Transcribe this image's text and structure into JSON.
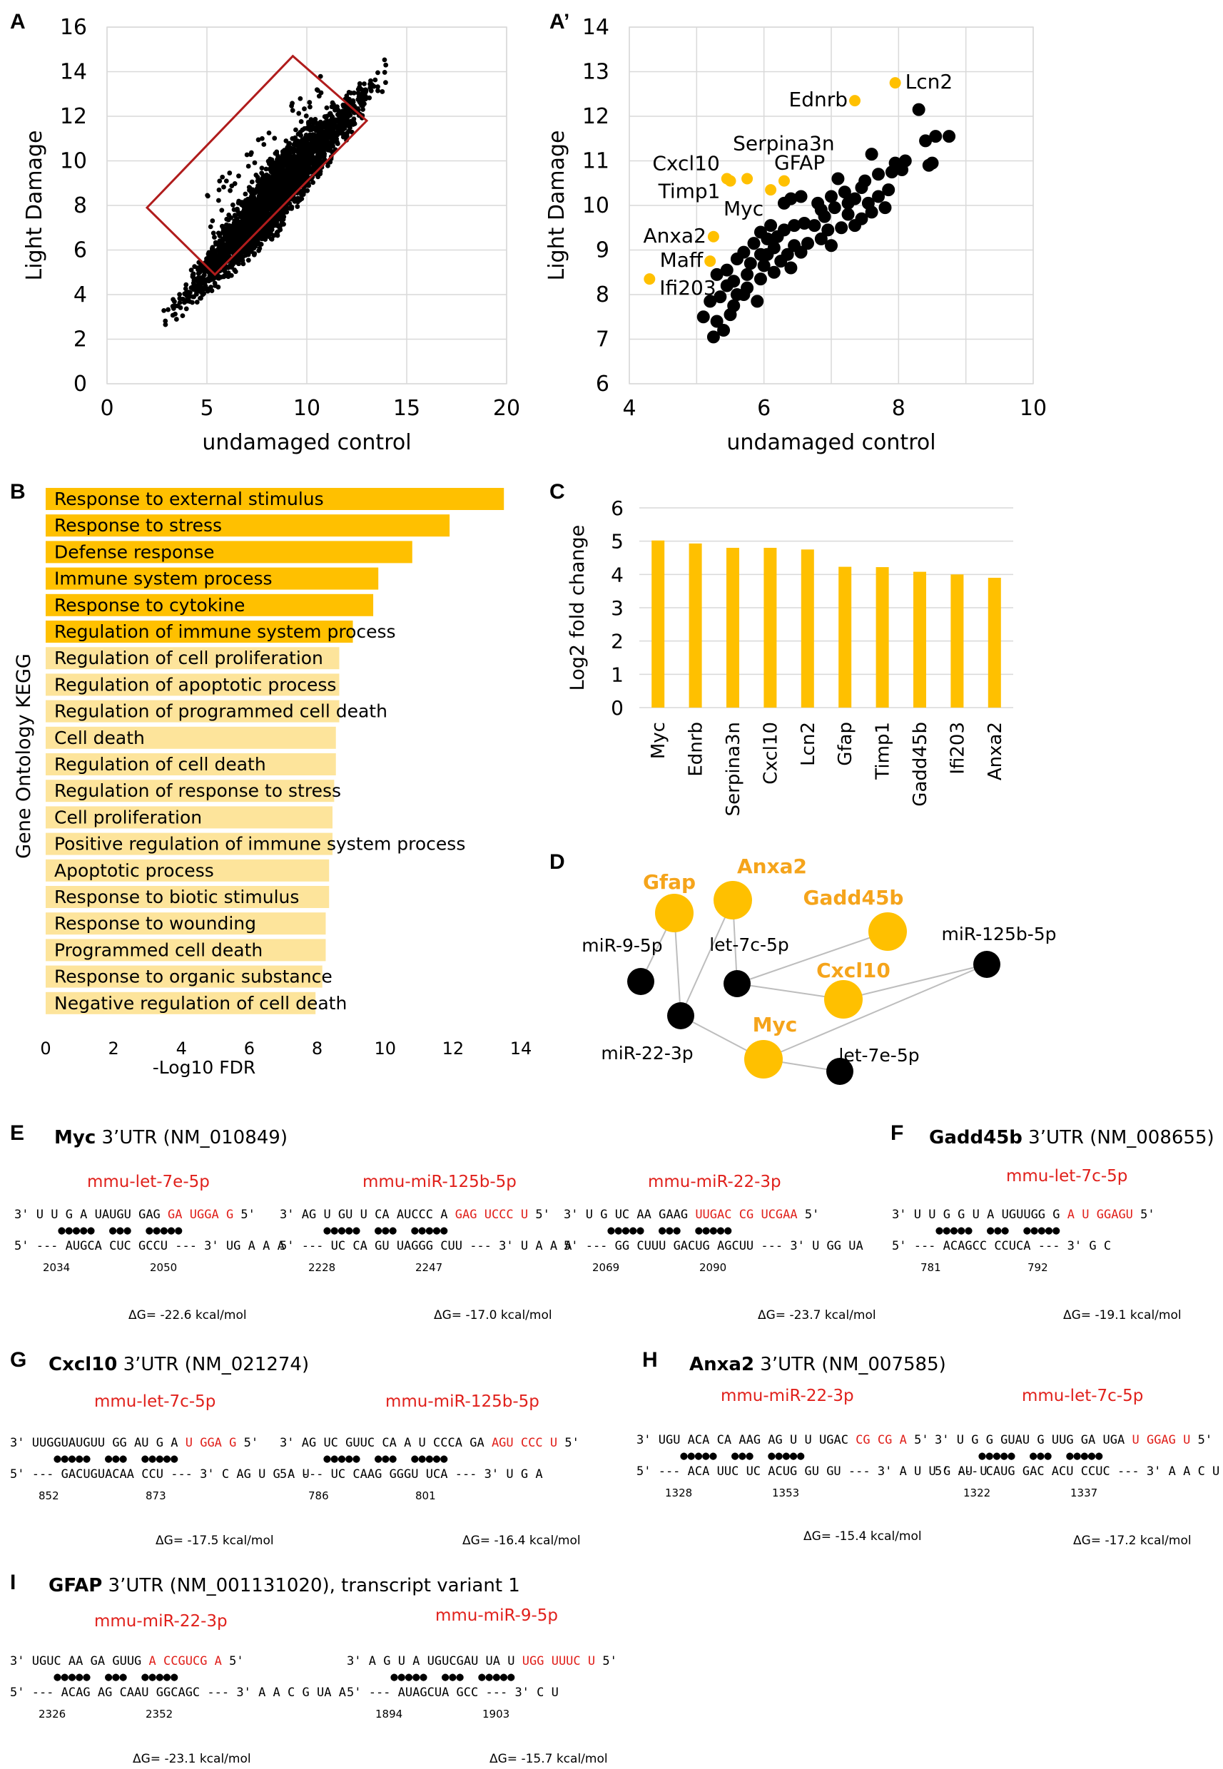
{
  "panels": {
    "A": {
      "label": "A",
      "xlabel": "undamaged control",
      "ylabel": "Light Damage",
      "xticks": [
        "0",
        "5",
        "10",
        "15",
        "20"
      ],
      "yticks": [
        "0",
        "2",
        "4",
        "6",
        "8",
        "10",
        "12",
        "14",
        "16"
      ]
    },
    "A2": {
      "label": "A’",
      "xlabel": "undamaged control",
      "ylabel": "Light Damage",
      "xticks": [
        "4",
        "6",
        "8",
        "10"
      ],
      "yticks": [
        "6",
        "7",
        "8",
        "9",
        "10",
        "11",
        "12",
        "13",
        "14"
      ]
    },
    "B": {
      "label": "B",
      "xlabel": "-Log10 FDR",
      "ylabel": "Gene Ontology KEGG",
      "xticks": [
        "0",
        "2",
        "4",
        "6",
        "8",
        "10",
        "12",
        "14"
      ]
    },
    "C": {
      "label": "C",
      "ylabel": "Log2 fold change",
      "yticks": [
        "0",
        "1",
        "2",
        "3",
        "4",
        "5",
        "6"
      ]
    },
    "D": {
      "label": "D"
    },
    "E": {
      "label": "E",
      "gene": "Myc",
      "title": " 3’UTR (NM_010849)"
    },
    "F": {
      "label": "F",
      "gene": "Gadd45b",
      "title": " 3’UTR (NM_008655)"
    },
    "G": {
      "label": "G",
      "gene": "Cxcl10",
      "title": " 3’UTR (NM_021274)"
    },
    "H": {
      "label": "H",
      "gene": "Anxa2",
      "title": " 3’UTR (NM_007585)"
    },
    "I": {
      "label": "I",
      "gene": "GFAP",
      "title": " 3’UTR (NM_001131020), transcript variant 1"
    }
  },
  "chart_data": [
    {
      "panel": "A",
      "type": "scatter",
      "xlabel": "undamaged control",
      "ylabel": "Light Damage",
      "xlim": [
        0,
        20
      ],
      "ylim": [
        0,
        16
      ],
      "grid": true,
      "description_points": "dense cloud along y = x from ~2.3 to ~14.3",
      "highlight_box": {
        "corners": [
          [
            2,
            7.9
          ],
          [
            9.3,
            14.7
          ],
          [
            13,
            11.8
          ],
          [
            5.4,
            4.9
          ]
        ],
        "color": "#b01c1c"
      }
    },
    {
      "panel": "A’",
      "type": "scatter",
      "xlabel": "undamaged control",
      "ylabel": "Light Damage",
      "xlim": [
        4,
        10
      ],
      "ylim": [
        6,
        14
      ],
      "grid": true,
      "labeled_points": [
        {
          "name": "Lcn2",
          "x": 7.95,
          "y": 12.75
        },
        {
          "name": "Ednrb",
          "x": 7.35,
          "y": 12.35
        },
        {
          "name": "Serpina3n",
          "x": 5.75,
          "y": 10.6
        },
        {
          "name": "Cxcl10",
          "x": 5.45,
          "y": 10.6
        },
        {
          "name": "GFAP",
          "x": 6.3,
          "y": 10.55
        },
        {
          "name": "Timp1",
          "x": 5.5,
          "y": 10.55
        },
        {
          "name": "Myc",
          "x": 6.1,
          "y": 10.35
        },
        {
          "name": "Anxa2",
          "x": 5.25,
          "y": 9.3
        },
        {
          "name": "Maff",
          "x": 5.2,
          "y": 8.75
        },
        {
          "name": "Ifi203",
          "x": 4.3,
          "y": 8.35
        }
      ],
      "points": [
        [
          8.3,
          12.15
        ],
        [
          8.55,
          11.55
        ],
        [
          8.75,
          11.55
        ],
        [
          8.4,
          11.45
        ],
        [
          8.1,
          11.0
        ],
        [
          8.5,
          10.95
        ],
        [
          8.45,
          10.9
        ],
        [
          7.6,
          11.15
        ],
        [
          7.95,
          10.95
        ],
        [
          7.9,
          10.75
        ],
        [
          8.05,
          10.8
        ],
        [
          7.7,
          10.7
        ],
        [
          7.45,
          10.4
        ],
        [
          7.35,
          10.15
        ],
        [
          7.55,
          10.05
        ],
        [
          7.7,
          10.2
        ],
        [
          7.8,
          9.95
        ],
        [
          7.2,
          10.3
        ],
        [
          7.0,
          10.2
        ],
        [
          6.8,
          10.05
        ],
        [
          6.55,
          10.2
        ],
        [
          6.4,
          10.15
        ],
        [
          6.3,
          10.05
        ],
        [
          7.05,
          9.95
        ],
        [
          7.25,
          9.8
        ],
        [
          7.45,
          9.7
        ],
        [
          7.6,
          9.85
        ],
        [
          6.9,
          9.75
        ],
        [
          6.75,
          9.55
        ],
        [
          6.95,
          9.45
        ],
        [
          7.15,
          9.5
        ],
        [
          7.35,
          9.55
        ],
        [
          6.6,
          9.6
        ],
        [
          6.45,
          9.55
        ],
        [
          6.3,
          9.45
        ],
        [
          6.1,
          9.55
        ],
        [
          5.95,
          9.4
        ],
        [
          6.05,
          9.25
        ],
        [
          6.2,
          9.3
        ],
        [
          6.45,
          9.1
        ],
        [
          6.65,
          9.15
        ],
        [
          6.85,
          9.25
        ],
        [
          7.0,
          9.1
        ],
        [
          6.15,
          9.05
        ],
        [
          5.85,
          9.15
        ],
        [
          5.7,
          8.95
        ],
        [
          5.95,
          8.9
        ],
        [
          6.35,
          8.9
        ],
        [
          6.55,
          8.95
        ],
        [
          6.25,
          8.75
        ],
        [
          6.0,
          8.65
        ],
        [
          5.8,
          8.7
        ],
        [
          5.6,
          8.8
        ],
        [
          5.45,
          8.55
        ],
        [
          5.75,
          8.45
        ],
        [
          6.15,
          8.5
        ],
        [
          6.4,
          8.6
        ],
        [
          5.95,
          8.35
        ],
        [
          5.55,
          8.3
        ],
        [
          5.3,
          8.45
        ],
        [
          5.45,
          8.2
        ],
        [
          5.75,
          8.15
        ],
        [
          5.6,
          8.0
        ],
        [
          5.35,
          7.95
        ],
        [
          5.2,
          7.85
        ],
        [
          5.55,
          7.75
        ],
        [
          5.9,
          7.85
        ],
        [
          5.5,
          7.55
        ],
        [
          5.1,
          7.5
        ],
        [
          5.3,
          7.4
        ],
        [
          5.4,
          7.2
        ],
        [
          5.25,
          7.05
        ],
        [
          5.7,
          8.0
        ],
        [
          6.05,
          8.9
        ],
        [
          6.85,
          9.9
        ],
        [
          7.1,
          10.6
        ],
        [
          7.25,
          10.05
        ],
        [
          7.5,
          10.55
        ],
        [
          7.85,
          10.35
        ],
        [
          8.0,
          10.85
        ]
      ]
    },
    {
      "panel": "B",
      "type": "bar",
      "orientation": "horizontal",
      "xlabel": "-Log10 FDR",
      "ylabel": "Gene Ontology KEGG",
      "xlim": [
        0,
        14
      ],
      "categories": [
        "Response to external stimulus",
        "Response to stress",
        "Defense response",
        "Immune system process",
        "Response to cytokine",
        "Regulation of immune system process",
        "Regulation of cell proliferation",
        "Regulation of apoptotic process",
        "Regulation of programmed cell death",
        "Cell death",
        "Regulation of cell death",
        "Regulation of response to stress",
        "Cell proliferation",
        "Positive regulation of immune system process",
        "Apoptotic process",
        "Response to biotic stimulus",
        "Response to wounding",
        "Programmed cell death",
        "Response to organic substance",
        "Negative regulation of cell death"
      ],
      "values": [
        13.5,
        11.9,
        10.8,
        9.8,
        9.65,
        9.05,
        8.65,
        8.65,
        8.65,
        8.55,
        8.55,
        8.5,
        8.45,
        8.45,
        8.35,
        8.35,
        8.25,
        8.25,
        8.15,
        7.95
      ],
      "colors": {
        "dark": "#ffc000",
        "light": "#fde49b"
      },
      "dark_count": 6
    },
    {
      "panel": "C",
      "type": "bar",
      "ylabel": "Log2 fold change",
      "ylim": [
        0,
        6
      ],
      "categories": [
        "Myc",
        "Ednrb",
        "Serpina3n",
        "Cxcl10",
        "Lcn2",
        "Gfap",
        "Timp1",
        "Gadd45b",
        "Ifi203",
        "Anxa2"
      ],
      "values": [
        5.02,
        4.93,
        4.8,
        4.8,
        4.75,
        4.23,
        4.22,
        4.08,
        4.0,
        3.9
      ],
      "color": "#ffc000",
      "grid": true
    },
    {
      "panel": "D",
      "type": "network",
      "nodes": [
        {
          "id": "Gfap",
          "kind": "gene"
        },
        {
          "id": "Anxa2",
          "kind": "gene"
        },
        {
          "id": "Gadd45b",
          "kind": "gene"
        },
        {
          "id": "Cxcl10",
          "kind": "gene"
        },
        {
          "id": "Myc",
          "kind": "gene"
        },
        {
          "id": "miR-9-5p",
          "kind": "mirna"
        },
        {
          "id": "let-7c-5p",
          "kind": "mirna"
        },
        {
          "id": "miR-125b-5p",
          "kind": "mirna"
        },
        {
          "id": "miR-22-3p",
          "kind": "mirna"
        },
        {
          "id": "let-7e-5p",
          "kind": "mirna"
        }
      ],
      "edges": [
        [
          "Gfap",
          "miR-9-5p"
        ],
        [
          "Gfap",
          "miR-22-3p"
        ],
        [
          "Anxa2",
          "miR-22-3p"
        ],
        [
          "Anxa2",
          "let-7c-5p"
        ],
        [
          "let-7c-5p",
          "Gadd45b"
        ],
        [
          "let-7c-5p",
          "Cxcl10"
        ],
        [
          "miR-125b-5p",
          "Cxcl10"
        ],
        [
          "miR-125b-5p",
          "Myc"
        ],
        [
          "miR-22-3p",
          "Myc"
        ],
        [
          "Myc",
          "let-7e-5p"
        ]
      ],
      "colors": {
        "gene": "#ffc000",
        "mirna": "#000000",
        "gene_label": "#f5a41b"
      }
    }
  ],
  "duplexes": {
    "E1": {
      "mirna": "mmu-let-7e-5p",
      "dg": "ΔG= -22.6 kcal/mol",
      "lines": [
        "3'",
        "  U",
        "   U",
        "    G",
        "     A",
        "      UAUGU  GAG  GA UGGA",
        "  ",
        "5' --- AUGCA  CUC  GCCU --- 3'",
        "         UG  A A",
        "               A",
        "      2034      2050"
      ]
    },
    "E2": {
      "mirna": "mmu-miR-125b-5p",
      "dg": "ΔG= -17.0 kcal/mol"
    },
    "E3": {
      "mirna": "mmu-miR-22-3p",
      "dg": "ΔG= -23.7 kcal/mol"
    },
    "F1": {
      "mirna": "mmu-let-7c-5p",
      "dg": "ΔG= -19.1 kcal/mol"
    },
    "G1": {
      "mirna": "mmu-let-7c-5p",
      "dg": "ΔG= -17.5 kcal/mol"
    },
    "G2": {
      "mirna": "mmu-miR-125b-5p",
      "dg": "ΔG= -16.4 kcal/mol"
    },
    "H1": {
      "mirna": "mmu-miR-22-3p",
      "dg": "ΔG= -15.4 kcal/mol"
    },
    "H2": {
      "mirna": "mmu-let-7c-5p",
      "dg": "ΔG= -17.2 kcal/mol"
    },
    "I1": {
      "mirna": "mmu-miR-22-3p",
      "dg": "ΔG= -23.1 kcal/mol"
    },
    "I2": {
      "mirna": "mmu-miR-9-5p",
      "dg": "ΔG= -15.7 kcal/mol"
    }
  },
  "duplex_text": {
    "E1": {
      "top": [
        "3'",
        "U",
        "U",
        "G",
        "A",
        "UAUGU",
        "GAG",
        "GA",
        "UGGA",
        "G",
        "5'"
      ],
      "bot": [
        "5' ---",
        "AUGCA",
        "CUC",
        "GCCU",
        "--- 3'",
        "UG",
        "A",
        "A",
        "A"
      ],
      "pos": [
        "2034",
        "2050"
      ]
    },
    "E2": {
      "top": [
        "3'",
        "AG",
        "U",
        "GU",
        "U",
        "CA",
        "AUCCC",
        "A",
        "GAG",
        "UCCC",
        "U",
        "5'"
      ],
      "bot": [
        "5' ---",
        "UC",
        "CA",
        "GU",
        "UAGGG",
        "CUU",
        "--- 3'",
        "U",
        "A",
        "A",
        "A"
      ],
      "pos": [
        "2228",
        "2247"
      ]
    },
    "E3": {
      "top": [
        "3'",
        "U",
        "G",
        "UC",
        "AA",
        "GAAG",
        "UUGAC",
        "CG",
        "UCGAA",
        "5'"
      ],
      "bot": [
        "5' ---",
        "GG",
        "CUUU",
        "GACUG",
        "AGCUU",
        "--- 3'",
        "U",
        "GG",
        "UA"
      ],
      "pos": [
        "2069",
        "2090"
      ]
    },
    "F1": {
      "top": [
        "3'",
        "U",
        "U",
        "G",
        "G",
        "U",
        "A",
        "UGUUGG",
        "G",
        "A",
        "U",
        "GGAGU",
        "5'"
      ],
      "bot": [
        "5' ---",
        "ACAGCC",
        "CCUCA",
        "--- 3'",
        "G",
        "C"
      ],
      "pos": [
        "781",
        "792"
      ]
    },
    "G1": {
      "top": [
        "3'",
        "UUGGUAUGUU",
        "GG",
        "AU",
        "G",
        "A",
        "U",
        "GGA",
        "G",
        "5'"
      ],
      "bot": [
        "5' ---",
        "GACUGUACAA",
        "CCU",
        "--- 3'",
        "C",
        "AG",
        "U",
        "G",
        "A",
        "U"
      ],
      "pos": [
        "852",
        "873"
      ]
    },
    "G2": {
      "top": [
        "3'",
        "AG",
        "UC",
        "GUUC",
        "CA",
        "A",
        "U",
        "CCCA",
        "GA",
        "AGU",
        "CCC",
        "U",
        "5'"
      ],
      "bot": [
        "5' ---",
        "UC",
        "CAAG",
        "GGGU",
        "UCA",
        "--- 3'",
        "U",
        "G",
        "A"
      ],
      "pos": [
        "786",
        "801"
      ]
    },
    "H1": {
      "top": [
        "3'",
        "UGU",
        "ACA",
        "CA",
        "AAG",
        "AG",
        "U",
        "U",
        "UGAC",
        "CG",
        "CG",
        "A",
        "5'"
      ],
      "bot": [
        "5' ---",
        "ACA",
        "UUC",
        "UC",
        "ACUG",
        "GU",
        "GU",
        "--- 3'",
        "A",
        "U",
        "U",
        "G",
        "AU",
        "U"
      ],
      "pos": [
        "1328",
        "1353"
      ]
    },
    "H2": {
      "top": [
        "3'",
        "U",
        "G",
        "G",
        "GUAU",
        "G",
        "UUG",
        "GA",
        "UGA",
        "U",
        "GGAG",
        "U",
        "5'"
      ],
      "bot": [
        "5' ---",
        "CAUG",
        "GAC",
        "ACU",
        "CCUC",
        "--- 3'",
        "A",
        "A",
        "C",
        "U"
      ],
      "pos": [
        "1322",
        "1337"
      ]
    },
    "I1": {
      "top": [
        "3'",
        "UGUC",
        "AA",
        "GA",
        "GUUG",
        "A",
        "CCGUCG",
        "A",
        "5'"
      ],
      "bot": [
        "5' ---",
        "ACAG",
        "AG",
        "CAAU",
        "GGCAGC",
        "--- 3'",
        "A",
        "A",
        "C",
        "G",
        "UA",
        "A"
      ],
      "pos": [
        "2326",
        "2352"
      ]
    },
    "I2": {
      "top": [
        "3'",
        "A",
        "G",
        "U",
        "A",
        "UGUCGAU",
        "UA",
        "U",
        "UGG",
        "UUUC",
        "U",
        "5'"
      ],
      "bot": [
        "5' ---",
        "AUAGCUA",
        "GCC",
        "--- 3'",
        "C",
        "U"
      ],
      "pos": [
        "1894",
        "1903"
      ]
    }
  }
}
